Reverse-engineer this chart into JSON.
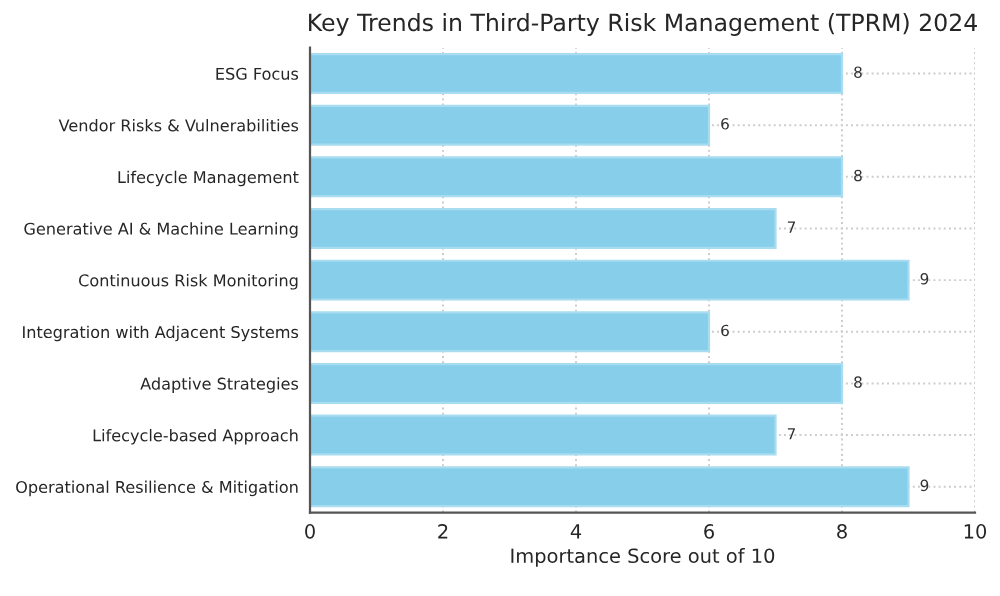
{
  "chart_data": {
    "type": "bar",
    "orientation": "horizontal",
    "title": "Key Trends in Third-Party Risk Management (TPRM) 2024",
    "xlabel": "Importance Score out of 10",
    "categories": [
      "ESG Focus",
      "Vendor Risks & Vulnerabilities",
      "Lifecycle Management",
      "Generative AI & Machine Learning",
      "Continuous Risk Monitoring",
      "Integration with Adjacent Systems",
      "Adaptive Strategies",
      "Lifecycle-based Approach",
      "Operational Resilience & Mitigation"
    ],
    "values": [
      8,
      6,
      8,
      7,
      9,
      6,
      8,
      7,
      9
    ],
    "color": "#87ceeb",
    "xlim": [
      0,
      10
    ],
    "xticks": [
      0,
      2,
      4,
      6,
      8,
      10
    ],
    "grid": true,
    "data_labels": true
  }
}
